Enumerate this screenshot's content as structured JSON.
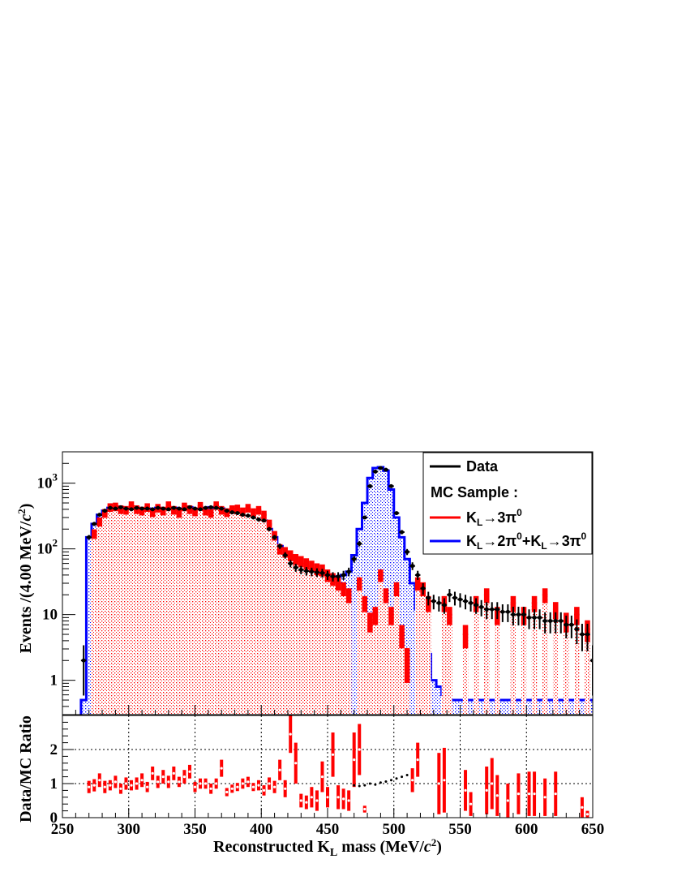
{
  "chart_data": {
    "type": "histogram",
    "x_range": [
      250,
      650
    ],
    "bin_width": 4,
    "x_ticks": [
      250,
      300,
      350,
      400,
      450,
      500,
      550,
      600,
      650
    ],
    "x_tick_labels": [
      "250",
      "300",
      "350",
      "400",
      "450",
      "500",
      "550",
      "600",
      "650"
    ],
    "xlabel": {
      "pre": "Reconstructed K",
      "sub": "L",
      "mid": " mass (MeV/",
      "ital": "c",
      "sup": "2",
      "post": ")"
    },
    "top_panel": {
      "y_scale": "log",
      "ylim": [
        0.3,
        3000
      ],
      "y_ticks": [
        1,
        10,
        100,
        1000
      ],
      "y_tick_labels": [
        {
          "base": "1",
          "exp": ""
        },
        {
          "base": "10",
          "exp": ""
        },
        {
          "base": "10",
          "exp": "2"
        },
        {
          "base": "10",
          "exp": "3"
        }
      ],
      "ylabel": {
        "pre": "Events /(4.00 MeV/",
        "ital": "c",
        "sup": "2",
        "post": ")"
      },
      "legend": {
        "position": "top-right",
        "entries": [
          {
            "label_parts": [
              {
                "t": "Data"
              }
            ],
            "color": "#000000"
          },
          {
            "label_parts": [
              {
                "t": "MC Sample :"
              }
            ],
            "color": ""
          },
          {
            "label_parts": [
              {
                "t": "K"
              },
              {
                "t": "L",
                "sub": true
              },
              {
                "t": "→3π"
              },
              {
                "t": "0",
                "sup": true
              }
            ],
            "color": "#ff0000"
          },
          {
            "label_parts": [
              {
                "t": "K"
              },
              {
                "t": "L",
                "sub": true
              },
              {
                "t": "→2π"
              },
              {
                "t": "0",
                "sup": true
              },
              {
                "t": "+K"
              },
              {
                "t": "L",
                "sub": true
              },
              {
                "t": "→3π"
              },
              {
                "t": "0",
                "sup": true
              }
            ],
            "color": "#0000ff"
          }
        ]
      },
      "series": [
        {
          "name": "Data",
          "color": "#000000"
        },
        {
          "name": "K_L→3π0",
          "color": "#ff0000"
        },
        {
          "name": "K_L→2π0+K_L→3π0",
          "color": "#0000ff"
        }
      ],
      "bin_centers": [
        266,
        270,
        274,
        278,
        282,
        286,
        290,
        294,
        298,
        302,
        306,
        310,
        314,
        318,
        322,
        326,
        330,
        334,
        338,
        342,
        346,
        350,
        354,
        358,
        362,
        366,
        370,
        374,
        378,
        382,
        386,
        390,
        394,
        398,
        402,
        406,
        410,
        414,
        418,
        422,
        426,
        430,
        434,
        438,
        442,
        446,
        450,
        454,
        458,
        462,
        466,
        470,
        474,
        478,
        482,
        486,
        490,
        494,
        498,
        502,
        506,
        510,
        514,
        518,
        522,
        526,
        530,
        534,
        538,
        542,
        546,
        550,
        554,
        558,
        562,
        566,
        570,
        574,
        578,
        582,
        586,
        590,
        594,
        598,
        602,
        606,
        610,
        614,
        618,
        622,
        626,
        630,
        634,
        638,
        642,
        646,
        650
      ],
      "data": [
        2,
        150,
        240,
        330,
        380,
        420,
        410,
        430,
        410,
        400,
        420,
        410,
        410,
        400,
        420,
        410,
        400,
        420,
        410,
        400,
        430,
        410,
        400,
        420,
        430,
        420,
        410,
        380,
        360,
        350,
        330,
        320,
        300,
        280,
        270,
        200,
        150,
        110,
        80,
        60,
        52,
        48,
        46,
        45,
        44,
        43,
        40,
        38,
        38,
        40,
        45,
        70,
        120,
        300,
        900,
        1500,
        1700,
        1600,
        900,
        350,
        180,
        90,
        55,
        40,
        25,
        18,
        16,
        15,
        14,
        20,
        18,
        17,
        16,
        15,
        14,
        13,
        12,
        12,
        12,
        11,
        11,
        10,
        10,
        10,
        9,
        9,
        9,
        8,
        8,
        8,
        8,
        7,
        7,
        6,
        5,
        5,
        2
      ],
      "mc_3pi0": [
        0,
        0,
        170,
        260,
        350,
        430,
        440,
        400,
        390,
        460,
        400,
        380,
        430,
        360,
        420,
        380,
        460,
        390,
        350,
        440,
        400,
        370,
        450,
        380,
        350,
        460,
        390,
        360,
        400,
        410,
        370,
        420,
        360,
        390,
        330,
        240,
        160,
        100,
        90,
        80,
        70,
        65,
        60,
        55,
        50,
        48,
        40,
        35,
        30,
        25,
        20,
        0,
        30,
        15,
        8,
        10,
        40,
        20,
        10,
        25,
        5,
        2,
        0,
        30,
        25,
        15,
        0,
        0,
        15,
        10,
        0,
        0,
        5,
        0,
        15,
        0,
        20,
        0,
        10,
        0,
        0,
        15,
        0,
        10,
        0,
        15,
        0,
        20,
        0,
        12,
        0,
        8,
        0,
        10,
        0,
        6,
        0
      ],
      "mc_total": [
        0.5,
        150,
        240,
        330,
        380,
        420,
        410,
        430,
        410,
        400,
        420,
        410,
        410,
        400,
        420,
        410,
        400,
        420,
        410,
        400,
        430,
        410,
        400,
        420,
        430,
        420,
        410,
        380,
        360,
        350,
        330,
        320,
        300,
        280,
        270,
        200,
        150,
        110,
        80,
        60,
        52,
        48,
        46,
        45,
        44,
        43,
        40,
        38,
        38,
        40,
        45,
        80,
        200,
        500,
        1200,
        1700,
        1750,
        1550,
        800,
        300,
        150,
        70,
        30,
        12,
        5,
        2.5,
        1,
        0.8,
        0.6,
        0.5,
        0.5,
        0.5,
        0.5,
        0.5,
        0.5,
        0.5,
        0.5,
        0.5,
        0.5,
        0.5,
        0.5,
        0.5,
        0.5,
        0.5,
        0.5,
        0.5,
        0.5,
        0.5,
        0.5,
        0.5,
        0.5,
        0.5,
        0.5,
        0.5,
        0.5,
        0.5,
        0.5
      ]
    },
    "bottom_panel": {
      "ylim": [
        0,
        3
      ],
      "y_ticks": [
        0,
        1,
        2
      ],
      "y_tick_labels": [
        "0",
        "1",
        "2"
      ],
      "ylabel": "Data/MC Ratio",
      "grid": true,
      "ratio_black": [
        {
          "x": 470,
          "y": 0.95
        },
        {
          "x": 474,
          "y": 0.93
        },
        {
          "x": 478,
          "y": 0.95
        },
        {
          "x": 482,
          "y": 1.0
        },
        {
          "x": 486,
          "y": 0.97
        },
        {
          "x": 490,
          "y": 1.03
        },
        {
          "x": 494,
          "y": 1.06
        },
        {
          "x": 498,
          "y": 1.1
        },
        {
          "x": 502,
          "y": 1.15
        },
        {
          "x": 506,
          "y": 1.2
        },
        {
          "x": 510,
          "y": 1.25
        }
      ],
      "ratio_red": [
        {
          "x": 270,
          "y": 0.9,
          "err": 0.18
        },
        {
          "x": 274,
          "y": 0.95,
          "err": 0.18
        },
        {
          "x": 278,
          "y": 1.1,
          "err": 0.2
        },
        {
          "x": 282,
          "y": 0.9,
          "err": 0.18
        },
        {
          "x": 286,
          "y": 0.95,
          "err": 0.15
        },
        {
          "x": 290,
          "y": 1.05,
          "err": 0.18
        },
        {
          "x": 294,
          "y": 0.85,
          "err": 0.15
        },
        {
          "x": 298,
          "y": 1.0,
          "err": 0.18
        },
        {
          "x": 302,
          "y": 0.95,
          "err": 0.15
        },
        {
          "x": 306,
          "y": 1.0,
          "err": 0.18
        },
        {
          "x": 310,
          "y": 1.1,
          "err": 0.2
        },
        {
          "x": 314,
          "y": 0.9,
          "err": 0.15
        },
        {
          "x": 318,
          "y": 1.3,
          "err": 0.2
        },
        {
          "x": 322,
          "y": 1.05,
          "err": 0.18
        },
        {
          "x": 326,
          "y": 1.2,
          "err": 0.2
        },
        {
          "x": 330,
          "y": 1.05,
          "err": 0.18
        },
        {
          "x": 334,
          "y": 1.3,
          "err": 0.2
        },
        {
          "x": 338,
          "y": 1.05,
          "err": 0.15
        },
        {
          "x": 342,
          "y": 1.2,
          "err": 0.2
        },
        {
          "x": 346,
          "y": 1.35,
          "err": 0.2
        },
        {
          "x": 350,
          "y": 0.9,
          "err": 0.15
        },
        {
          "x": 354,
          "y": 1.0,
          "err": 0.15
        },
        {
          "x": 358,
          "y": 1.0,
          "err": 0.15
        },
        {
          "x": 362,
          "y": 0.85,
          "err": 0.15
        },
        {
          "x": 366,
          "y": 1.0,
          "err": 0.15
        },
        {
          "x": 370,
          "y": 1.45,
          "err": 0.25
        },
        {
          "x": 374,
          "y": 0.75,
          "err": 0.12
        },
        {
          "x": 378,
          "y": 0.85,
          "err": 0.12
        },
        {
          "x": 382,
          "y": 0.9,
          "err": 0.12
        },
        {
          "x": 386,
          "y": 1.0,
          "err": 0.15
        },
        {
          "x": 390,
          "y": 1.05,
          "err": 0.15
        },
        {
          "x": 394,
          "y": 0.9,
          "err": 0.12
        },
        {
          "x": 398,
          "y": 0.95,
          "err": 0.15
        },
        {
          "x": 402,
          "y": 0.8,
          "err": 0.15
        },
        {
          "x": 406,
          "y": 1.0,
          "err": 0.18
        },
        {
          "x": 410,
          "y": 0.9,
          "err": 0.18
        },
        {
          "x": 414,
          "y": 1.4,
          "err": 0.3
        },
        {
          "x": 418,
          "y": 0.85,
          "err": 0.25
        },
        {
          "x": 422,
          "y": 2.45,
          "err": 0.55
        },
        {
          "x": 426,
          "y": 1.6,
          "err": 0.6
        },
        {
          "x": 430,
          "y": 0.5,
          "err": 0.2
        },
        {
          "x": 434,
          "y": 0.45,
          "err": 0.2
        },
        {
          "x": 438,
          "y": 0.6,
          "err": 0.3
        },
        {
          "x": 442,
          "y": 0.5,
          "err": 0.3
        },
        {
          "x": 446,
          "y": 1.2,
          "err": 0.45
        },
        {
          "x": 450,
          "y": 0.6,
          "err": 0.3
        },
        {
          "x": 454,
          "y": 1.85,
          "err": 0.65
        },
        {
          "x": 458,
          "y": 0.6,
          "err": 0.35
        },
        {
          "x": 462,
          "y": 0.55,
          "err": 0.3
        },
        {
          "x": 466,
          "y": 0.5,
          "err": 0.3
        },
        {
          "x": 470,
          "y": 1.7,
          "err": 0.8
        },
        {
          "x": 474,
          "y": 2.0,
          "err": 0.75
        },
        {
          "x": 478,
          "y": 0.25,
          "err": 0.1
        },
        {
          "x": 514,
          "y": 1.1,
          "err": 0.35
        },
        {
          "x": 518,
          "y": 1.7,
          "err": 0.5
        },
        {
          "x": 534,
          "y": 1.0,
          "err": 0.9
        },
        {
          "x": 538,
          "y": 1.1,
          "err": 0.95
        },
        {
          "x": 554,
          "y": 0.8,
          "err": 0.6
        },
        {
          "x": 558,
          "y": 0.4,
          "err": 0.35
        },
        {
          "x": 570,
          "y": 0.8,
          "err": 0.7
        },
        {
          "x": 574,
          "y": 1.0,
          "err": 0.75
        },
        {
          "x": 578,
          "y": 0.65,
          "err": 0.6
        },
        {
          "x": 586,
          "y": 0.5,
          "err": 0.5
        },
        {
          "x": 594,
          "y": 0.7,
          "err": 0.6
        },
        {
          "x": 602,
          "y": 0.7,
          "err": 0.65
        },
        {
          "x": 606,
          "y": 0.7,
          "err": 0.65
        },
        {
          "x": 614,
          "y": 0.6,
          "err": 0.55
        },
        {
          "x": 622,
          "y": 0.7,
          "err": 0.65
        },
        {
          "x": 642,
          "y": 0.3,
          "err": 0.3
        },
        {
          "x": 646,
          "y": 0.1,
          "err": 0.1
        }
      ]
    }
  }
}
